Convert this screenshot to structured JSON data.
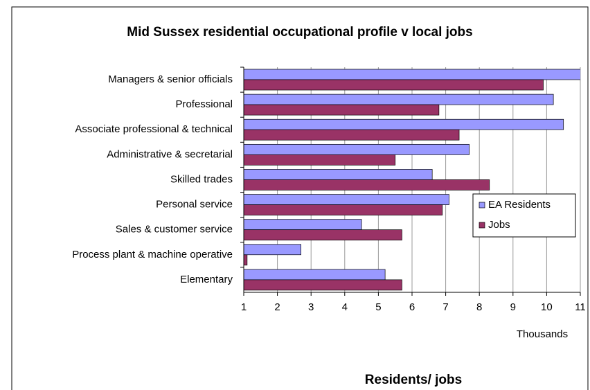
{
  "chart_data": {
    "type": "barh",
    "title": "Mid Sussex residential occupational profile v local jobs",
    "categories": [
      "Managers & senior officials",
      "Professional",
      "Associate professional & technical",
      "Administrative & secretarial",
      "Skilled trades",
      "Personal service",
      "Sales & customer service",
      "Process plant & machine operative",
      "Elementary"
    ],
    "series": [
      {
        "name": "EA Residents",
        "color": "#9999ff",
        "values": [
          11.1,
          10.2,
          10.5,
          7.7,
          6.6,
          7.1,
          4.5,
          2.7,
          5.2
        ]
      },
      {
        "name": "Jobs",
        "color": "#993366",
        "values": [
          9.9,
          6.8,
          7.4,
          5.5,
          8.3,
          6.9,
          5.7,
          1.1,
          5.7
        ]
      }
    ],
    "xlim": [
      1,
      11
    ],
    "xticks": [
      1,
      2,
      3,
      4,
      5,
      6,
      7,
      8,
      9,
      10,
      11
    ],
    "xlabel": "Thousands",
    "footer_label": "Residents/ jobs",
    "grid": true,
    "legend": "right"
  }
}
